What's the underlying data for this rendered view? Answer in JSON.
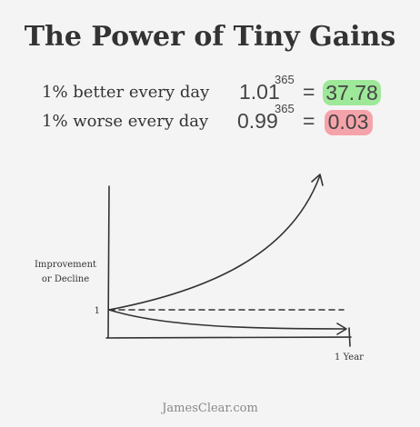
{
  "header": {
    "title": "The Power of Tiny Gains"
  },
  "rows": [
    {
      "label": "1% better every day",
      "base": "1.01",
      "exponent": "365",
      "equals": "=",
      "result": "37.78"
    },
    {
      "label": "1% worse every day",
      "base": "0.99",
      "exponent": "365",
      "equals": "=",
      "result": "0.03"
    }
  ],
  "graph": {
    "y_label": [
      "Improvement",
      "or Decline"
    ],
    "baseline_label": "1",
    "x_label": "1 Year"
  },
  "footer": {
    "credit": "JamesClear.com"
  }
}
